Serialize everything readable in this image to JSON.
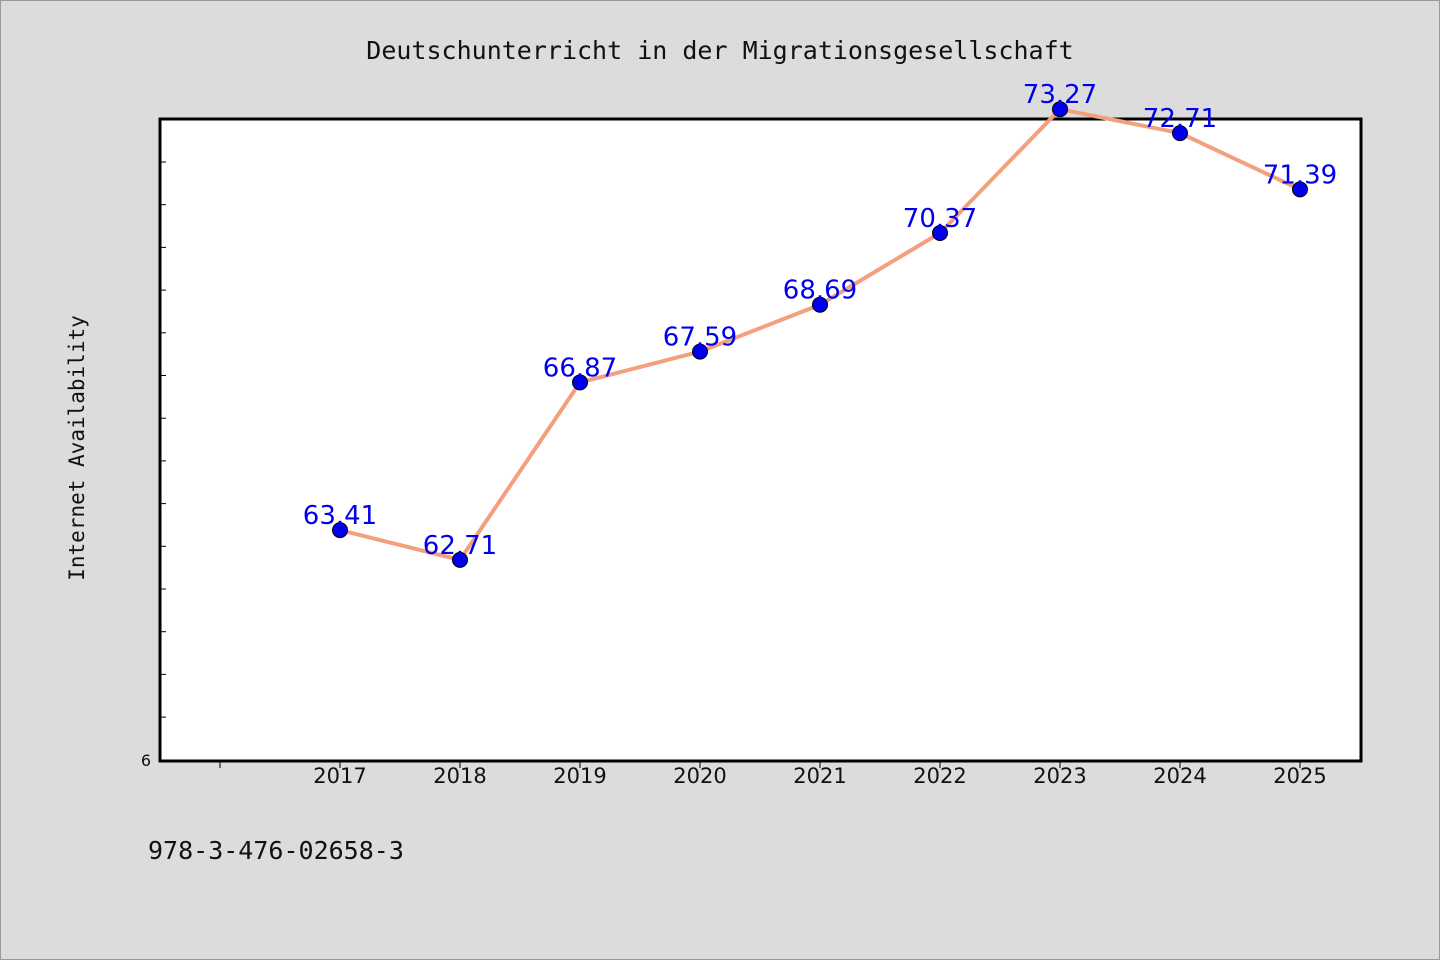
{
  "chart_data": {
    "type": "line",
    "title": "Deutschunterricht in der Migrationsgesellschaft",
    "xlabel": "",
    "ylabel": "Internet Availability",
    "categories": [
      "2017",
      "2018",
      "2019",
      "2020",
      "2021",
      "2022",
      "2023",
      "2024",
      "2025"
    ],
    "series": [
      {
        "values": [
          63.41,
          62.71,
          66.87,
          67.59,
          68.69,
          70.37,
          73.27,
          72.71,
          71.39
        ],
        "labels": [
          "63.41",
          "62.71",
          "66.87",
          "67.59",
          "68.69",
          "70.37",
          "73.27",
          "72.71",
          "71.39"
        ]
      }
    ],
    "ylim": [
      58,
      73.04
    ],
    "yticks_printed": [
      "6"
    ],
    "grid": false,
    "legend": "none",
    "colors": {
      "line": "#f4a07e",
      "marker": "#0000ee",
      "data_label": "#0000ee",
      "background": "#dcdcdc",
      "plot_area": "#ffffff"
    }
  },
  "footer": {
    "isbn": "978-3-476-02658-3"
  }
}
